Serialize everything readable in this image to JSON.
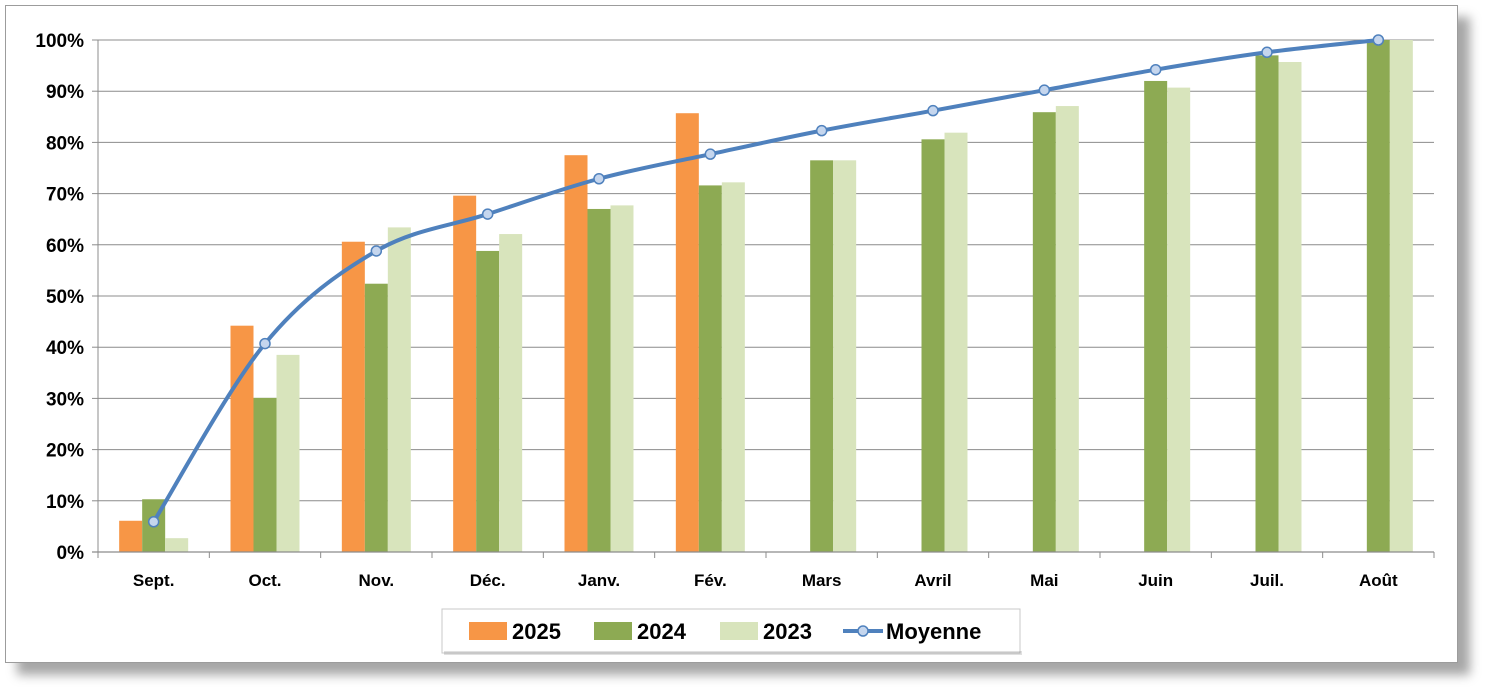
{
  "chart_data": {
    "type": "bar",
    "title": "",
    "xlabel": "",
    "ylabel": "",
    "ylim": [
      0,
      100
    ],
    "yticks": [
      "0%",
      "10%",
      "20%",
      "30%",
      "40%",
      "50%",
      "60%",
      "70%",
      "80%",
      "90%",
      "100%"
    ],
    "categories": [
      "Sept.",
      "Oct.",
      "Nov.",
      "Déc.",
      "Janv.",
      "Fév.",
      "Mars",
      "Avril",
      "Mai",
      "Juin",
      "Juil.",
      "Août"
    ],
    "series": [
      {
        "name": "2025",
        "type": "bar",
        "color": "#F79646",
        "values": [
          6.1,
          44.2,
          60.6,
          69.6,
          77.5,
          85.7,
          null,
          null,
          null,
          null,
          null,
          null
        ]
      },
      {
        "name": "2024",
        "type": "bar",
        "color": "#8DAA53",
        "values": [
          10.3,
          30.1,
          52.4,
          58.8,
          67.0,
          71.6,
          76.5,
          80.6,
          85.9,
          92.0,
          97.0,
          100.0
        ]
      },
      {
        "name": "2023",
        "type": "bar",
        "color": "#D8E4BC",
        "values": [
          2.7,
          38.5,
          63.4,
          62.1,
          67.7,
          72.2,
          76.5,
          81.9,
          87.1,
          90.7,
          95.7,
          100.0
        ]
      },
      {
        "name": "Moyenne",
        "type": "line",
        "color": "#4F81BD",
        "marker_fill": "#C5D6EE",
        "values": [
          5.9,
          40.7,
          58.8,
          66.0,
          72.9,
          77.7,
          82.3,
          86.2,
          90.2,
          94.2,
          97.6,
          100.0
        ]
      }
    ],
    "grid": true,
    "legend": "bottom"
  }
}
